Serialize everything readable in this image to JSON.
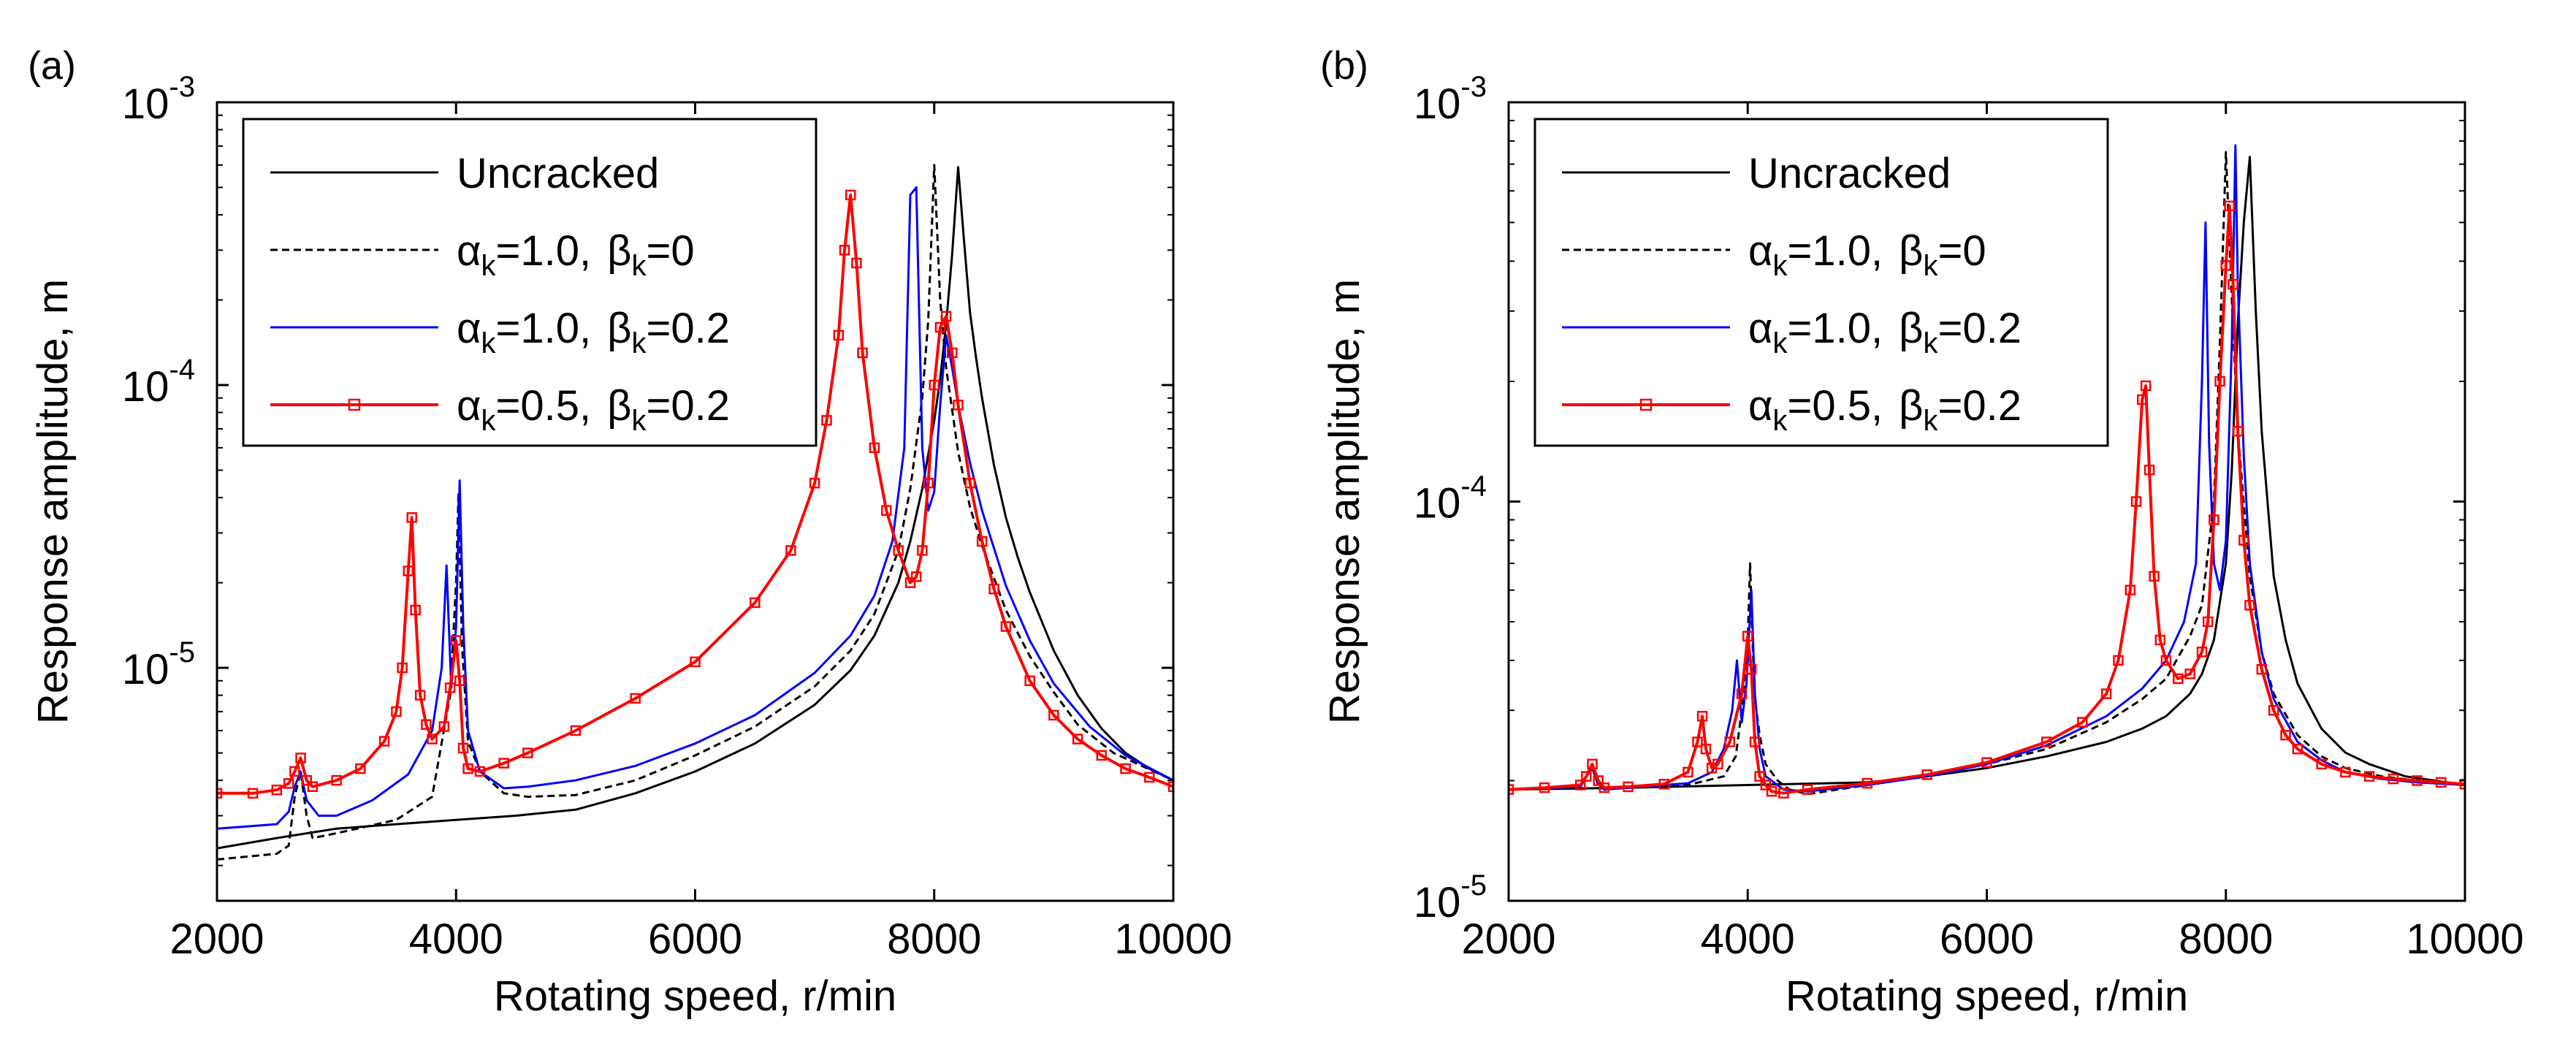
{
  "chart_data": [
    {
      "type": "line",
      "panel_label": "(a)",
      "xlabel": "Rotating speed, r/min",
      "ylabel": "Response amplitude, m",
      "xlim": [
        2000,
        10000
      ],
      "ylim": [
        1.5e-06,
        0.001
      ],
      "yscale": "log",
      "xticks": [
        2000,
        4000,
        6000,
        8000,
        10000
      ],
      "xtick_labels": [
        "2000",
        "4000",
        "6000",
        "8000",
        "10000"
      ],
      "yticks": [
        {
          "value": 1e-05,
          "base": "10",
          "exp": "-5"
        },
        {
          "value": 0.0001,
          "base": "10",
          "exp": "-4"
        },
        {
          "value": 0.001,
          "base": "10",
          "exp": "-3"
        }
      ],
      "legend_position": "top-left",
      "series": [
        {
          "name": "Uncracked",
          "legend": {
            "a_sym": "",
            "a_sub": "",
            "a_val": "",
            "b_sym": "",
            "b_sub": "",
            "b_val": "",
            "plain": "Uncracked"
          },
          "color": "#000000",
          "dash": "",
          "marker": "",
          "x": [
            2000,
            2500,
            3000,
            3500,
            4000,
            4500,
            5000,
            5500,
            6000,
            6500,
            7000,
            7300,
            7500,
            7700,
            7800,
            7900,
            8000,
            8050,
            8100,
            8150,
            8200,
            8250,
            8300,
            8350,
            8400,
            8500,
            8600,
            8700,
            8800,
            9000,
            9200,
            9400,
            9600,
            9800,
            10000
          ],
          "y": [
            2.3e-06,
            2.5e-06,
            2.7e-06,
            2.8e-06,
            2.9e-06,
            3e-06,
            3.15e-06,
            3.6e-06,
            4.3e-06,
            5.4e-06,
            7.4e-06,
            9.8e-06,
            1.3e-05,
            2e-05,
            2.8e-05,
            4.3e-05,
            7.5e-05,
            0.000105,
            0.000165,
            0.00029,
            0.00059,
            0.00032,
            0.00018,
            0.000125,
            9e-05,
            5.2e-05,
            3.4e-05,
            2.45e-05,
            1.85e-05,
            1.15e-05,
            8e-06,
            6.1e-06,
            5e-06,
            4.4e-06,
            4e-06
          ]
        },
        {
          "name": "αk=1.0, βk=0",
          "legend": {
            "a_sym": "α",
            "a_sub": "k",
            "a_val": "=1.0,",
            "b_sym": "β",
            "b_sub": "k",
            "b_val": "=0",
            "plain": ""
          },
          "color": "#000000",
          "dash": "10,6",
          "marker": "",
          "x": [
            2000,
            2500,
            2600,
            2650,
            2700,
            2750,
            2800,
            3000,
            3500,
            3800,
            3950,
            4000,
            4020,
            4050,
            4100,
            4200,
            4400,
            4600,
            5000,
            5500,
            6000,
            6500,
            7000,
            7300,
            7500,
            7700,
            7800,
            7900,
            7950,
            8000,
            8050,
            8100,
            8200,
            8300,
            8400,
            8600,
            8800,
            9000,
            9200,
            9500,
            10000
          ],
          "y": [
            2.1e-06,
            2.2e-06,
            2.35e-06,
            3.5e-06,
            4.3e-06,
            3e-06,
            2.5e-06,
            2.6e-06,
            2.9e-06,
            3.5e-06,
            8e-06,
            2e-05,
            4.1e-05,
            1.2e-05,
            5.5e-06,
            4.3e-06,
            3.6e-06,
            3.5e-06,
            3.55e-06,
            4e-06,
            4.9e-06,
            6.2e-06,
            8.6e-06,
            1.15e-05,
            1.55e-05,
            2.6e-05,
            4.3e-05,
            9e-05,
            0.00017,
            0.0006,
            0.0002,
            0.000115,
            5.8e-05,
            3.7e-05,
            2.7e-05,
            1.6e-05,
            1.1e-05,
            8.2e-06,
            6.3e-06,
            5e-06,
            4e-06
          ]
        },
        {
          "name": "αk=1.0, βk=0.2",
          "legend": {
            "a_sym": "α",
            "a_sub": "k",
            "a_val": "=1.0,",
            "b_sym": "β",
            "b_sub": "k",
            "b_val": "=0.2",
            "plain": ""
          },
          "color": "#0000ff",
          "dash": "",
          "marker": "",
          "x": [
            2000,
            2500,
            2600,
            2650,
            2700,
            2750,
            2850,
            3000,
            3300,
            3600,
            3800,
            3880,
            3920,
            3960,
            4000,
            4030,
            4060,
            4100,
            4200,
            4400,
            4600,
            5000,
            5500,
            6000,
            6500,
            7000,
            7300,
            7500,
            7650,
            7750,
            7800,
            7850,
            7900,
            7950,
            8000,
            8050,
            8100,
            8150,
            8200,
            8300,
            8400,
            8600,
            8800,
            9000,
            9300,
            9600,
            10000
          ],
          "y": [
            2.7e-06,
            2.8e-06,
            3.1e-06,
            3.8e-06,
            4.3e-06,
            3.4e-06,
            3e-06,
            3e-06,
            3.4e-06,
            4.2e-06,
            6e-06,
            1e-05,
            2.3e-05,
            8.5e-06,
            1.4e-05,
            4.6e-05,
            1.4e-05,
            6e-06,
            4.3e-06,
            3.75e-06,
            3.8e-06,
            4e-06,
            4.5e-06,
            5.4e-06,
            6.8e-06,
            9.6e-06,
            1.3e-05,
            1.8e-05,
            2.8e-05,
            6e-05,
            0.00047,
            0.0005,
            6e-05,
            3.6e-05,
            4.2e-05,
            8.5e-05,
            0.00015,
            0.000115,
            8.5e-05,
            5.3e-05,
            3.6e-05,
            1.95e-05,
            1.25e-05,
            8.8e-06,
            6.2e-06,
            4.9e-06,
            4e-06
          ]
        },
        {
          "name": "αk=0.5, βk=0.2",
          "legend": {
            "a_sym": "α",
            "a_sub": "k",
            "a_val": "=0.5,",
            "b_sym": "β",
            "b_sub": "k",
            "b_val": "=0.2",
            "plain": ""
          },
          "color": "#ff0000",
          "dash": "",
          "marker": "square",
          "x": [
            2000,
            2300,
            2500,
            2600,
            2650,
            2700,
            2750,
            2800,
            3000,
            3200,
            3400,
            3500,
            3550,
            3600,
            3630,
            3660,
            3700,
            3750,
            3800,
            3900,
            3950,
            4000,
            4030,
            4060,
            4100,
            4200,
            4400,
            4600,
            5000,
            5500,
            6000,
            6500,
            6800,
            7000,
            7100,
            7200,
            7250,
            7300,
            7350,
            7400,
            7500,
            7600,
            7700,
            7800,
            7850,
            7900,
            7950,
            8000,
            8050,
            8100,
            8150,
            8200,
            8300,
            8400,
            8500,
            8600,
            8800,
            9000,
            9200,
            9400,
            9600,
            9800,
            10000
          ],
          "y": [
            3.6e-06,
            3.6e-06,
            3.7e-06,
            3.9e-06,
            4.3e-06,
            4.8e-06,
            4e-06,
            3.8e-06,
            4e-06,
            4.4e-06,
            5.5e-06,
            7e-06,
            1e-05,
            2.2e-05,
            3.4e-05,
            1.6e-05,
            8e-06,
            6.3e-06,
            5.6e-06,
            6.2e-06,
            8.5e-06,
            1.25e-05,
            9e-06,
            5.2e-06,
            4.4e-06,
            4.3e-06,
            4.6e-06,
            5e-06,
            6e-06,
            7.8e-06,
            1.05e-05,
            1.7e-05,
            2.6e-05,
            4.5e-05,
            7.5e-05,
            0.00015,
            0.0003,
            0.00047,
            0.00027,
            0.00013,
            6e-05,
            3.6e-05,
            2.6e-05,
            2e-05,
            2.1e-05,
            2.6e-05,
            4.5e-05,
            0.0001,
            0.00016,
            0.000175,
            0.00013,
            8.5e-05,
            4.5e-05,
            2.8e-05,
            1.9e-05,
            1.4e-05,
            9e-06,
            6.8e-06,
            5.6e-06,
            4.9e-06,
            4.4e-06,
            4.1e-06,
            3.8e-06
          ]
        }
      ]
    },
    {
      "type": "line",
      "panel_label": "(b)",
      "xlabel": "Rotating speed, r/min",
      "ylabel": "Response amplitude, m",
      "xlim": [
        2000,
        10000
      ],
      "ylim": [
        1e-05,
        0.001
      ],
      "yscale": "log",
      "xticks": [
        2000,
        4000,
        6000,
        8000,
        10000
      ],
      "xtick_labels": [
        "2000",
        "4000",
        "6000",
        "8000",
        "10000"
      ],
      "yticks": [
        {
          "value": 1e-05,
          "base": "10",
          "exp": "-5"
        },
        {
          "value": 0.0001,
          "base": "10",
          "exp": "-4"
        },
        {
          "value": 0.001,
          "base": "10",
          "exp": "-3"
        }
      ],
      "legend_position": "top-left",
      "series": [
        {
          "name": "Uncracked",
          "legend": {
            "a_sym": "",
            "a_sub": "",
            "a_val": "",
            "b_sym": "",
            "b_sub": "",
            "b_val": "",
            "plain": "Uncracked"
          },
          "color": "#000000",
          "dash": "",
          "marker": "",
          "x": [
            2000,
            3000,
            4000,
            5000,
            5500,
            6000,
            6500,
            7000,
            7300,
            7500,
            7700,
            7800,
            7900,
            8000,
            8050,
            8100,
            8150,
            8200,
            8250,
            8300,
            8400,
            8500,
            8600,
            8800,
            9000,
            9200,
            9500,
            10000
          ],
          "y": [
            1.9e-05,
            1.92e-05,
            1.95e-05,
            1.98e-05,
            2.05e-05,
            2.15e-05,
            2.3e-05,
            2.5e-05,
            2.7e-05,
            2.9e-05,
            3.3e-05,
            3.7e-05,
            4.5e-05,
            7e-05,
            0.00012,
            0.00028,
            0.0005,
            0.00073,
            0.0003,
            0.00015,
            6.5e-05,
            4.5e-05,
            3.5e-05,
            2.7e-05,
            2.35e-05,
            2.2e-05,
            2.05e-05,
            1.95e-05
          ]
        },
        {
          "name": "αk=1.0, βk=0",
          "legend": {
            "a_sym": "α",
            "a_sub": "k",
            "a_val": "=1.0,",
            "b_sym": "β",
            "b_sub": "k",
            "b_val": "=0",
            "plain": ""
          },
          "color": "#000000",
          "dash": "10,6",
          "marker": "",
          "x": [
            2000,
            2600,
            2650,
            2700,
            2750,
            2800,
            3000,
            3500,
            3800,
            3900,
            3950,
            4000,
            4020,
            4040,
            4060,
            4100,
            4150,
            4250,
            4350,
            4500,
            5000,
            5500,
            6000,
            6500,
            7000,
            7300,
            7500,
            7700,
            7800,
            7900,
            7950,
            8000,
            8050,
            8100,
            8200,
            8300,
            8400,
            8600,
            8800,
            9000,
            9300,
            9600,
            10000
          ],
          "y": [
            1.9e-05,
            1.93e-05,
            2.05e-05,
            2.15e-05,
            1.95e-05,
            1.9e-05,
            1.92e-05,
            1.95e-05,
            2.05e-05,
            2.3e-05,
            3e-05,
            4.5e-05,
            7e-05,
            4.5e-05,
            3.2e-05,
            2.6e-05,
            2.2e-05,
            2e-05,
            1.9e-05,
            1.85e-05,
            1.95e-05,
            2.05e-05,
            2.2e-05,
            2.4e-05,
            2.8e-05,
            3.2e-05,
            3.6e-05,
            4.6e-05,
            5.5e-05,
            0.0001,
            0.00025,
            0.00075,
            0.00032,
            0.00015,
            6.5e-05,
            4.2e-05,
            3.3e-05,
            2.6e-05,
            2.3e-05,
            2.15e-05,
            2.05e-05,
            2e-05,
            1.95e-05
          ]
        },
        {
          "name": "αk=1.0, βk=0.2",
          "legend": {
            "a_sym": "α",
            "a_sub": "k",
            "a_val": "=1.0,",
            "b_sym": "β",
            "b_sub": "k",
            "b_val": "=0.2",
            "plain": ""
          },
          "color": "#0000ff",
          "dash": "",
          "marker": "",
          "x": [
            2000,
            2600,
            2650,
            2700,
            2750,
            2800,
            3000,
            3500,
            3700,
            3800,
            3870,
            3910,
            3950,
            3990,
            4030,
            4060,
            4100,
            4150,
            4300,
            4500,
            5000,
            5500,
            6000,
            6500,
            7000,
            7300,
            7500,
            7650,
            7750,
            7800,
            7830,
            7860,
            7900,
            7950,
            8000,
            8050,
            8080,
            8100,
            8150,
            8200,
            8300,
            8400,
            8600,
            8800,
            9000,
            9300,
            9600,
            10000
          ],
          "y": [
            1.9e-05,
            1.93e-05,
            2.05e-05,
            2.15e-05,
            1.97e-05,
            1.9e-05,
            1.92e-05,
            1.97e-05,
            2.1e-05,
            2.4e-05,
            3e-05,
            4e-05,
            2.8e-05,
            3.5e-05,
            6e-05,
            3.3e-05,
            2.4e-05,
            2.05e-05,
            1.9e-05,
            1.88e-05,
            1.95e-05,
            2.05e-05,
            2.2e-05,
            2.45e-05,
            2.9e-05,
            3.4e-05,
            4e-05,
            5e-05,
            7e-05,
            0.0002,
            0.0005,
            0.00014,
            7e-05,
            6e-05,
            8e-05,
            0.00025,
            0.00078,
            0.00035,
            0.00013,
            7e-05,
            4.2e-05,
            3.2e-05,
            2.5e-05,
            2.25e-05,
            2.1e-05,
            2.02e-05,
            1.98e-05,
            1.95e-05
          ]
        },
        {
          "name": "αk=0.5, βk=0.2",
          "legend": {
            "a_sym": "α",
            "a_sub": "k",
            "a_val": "=0.5,",
            "b_sym": "β",
            "b_sub": "k",
            "b_val": "=0.2",
            "plain": ""
          },
          "color": "#ff0000",
          "dash": "",
          "marker": "square",
          "x": [
            2000,
            2300,
            2600,
            2650,
            2700,
            2750,
            2800,
            3000,
            3300,
            3500,
            3580,
            3620,
            3650,
            3700,
            3750,
            3850,
            3950,
            4000,
            4030,
            4060,
            4100,
            4150,
            4200,
            4300,
            4500,
            5000,
            5500,
            6000,
            6500,
            6800,
            7000,
            7100,
            7200,
            7250,
            7300,
            7330,
            7360,
            7400,
            7450,
            7500,
            7600,
            7700,
            7800,
            7850,
            7900,
            7950,
            8000,
            8030,
            8060,
            8100,
            8150,
            8200,
            8300,
            8400,
            8500,
            8600,
            8800,
            9000,
            9200,
            9400,
            9600,
            9800,
            10000
          ],
          "y": [
            1.9e-05,
            1.92e-05,
            1.95e-05,
            2.05e-05,
            2.2e-05,
            2e-05,
            1.92e-05,
            1.93e-05,
            1.96e-05,
            2.1e-05,
            2.5e-05,
            2.9e-05,
            2.4e-05,
            2.15e-05,
            2.2e-05,
            2.5e-05,
            3.3e-05,
            4.6e-05,
            3.8e-05,
            2.5e-05,
            2.05e-05,
            1.95e-05,
            1.88e-05,
            1.86e-05,
            1.9e-05,
            1.97e-05,
            2.07e-05,
            2.22e-05,
            2.5e-05,
            2.8e-05,
            3.3e-05,
            4e-05,
            6e-05,
            0.0001,
            0.00018,
            0.000195,
            0.00012,
            6.5e-05,
            4.5e-05,
            4e-05,
            3.6e-05,
            3.7e-05,
            4.2e-05,
            5e-05,
            9e-05,
            0.0002,
            0.00039,
            0.00055,
            0.00035,
            0.00015,
            8e-05,
            5.5e-05,
            3.8e-05,
            3e-05,
            2.6e-05,
            2.4e-05,
            2.2e-05,
            2.1e-05,
            2.05e-05,
            2.02e-05,
            2e-05,
            1.98e-05,
            1.96e-05
          ]
        }
      ]
    }
  ]
}
